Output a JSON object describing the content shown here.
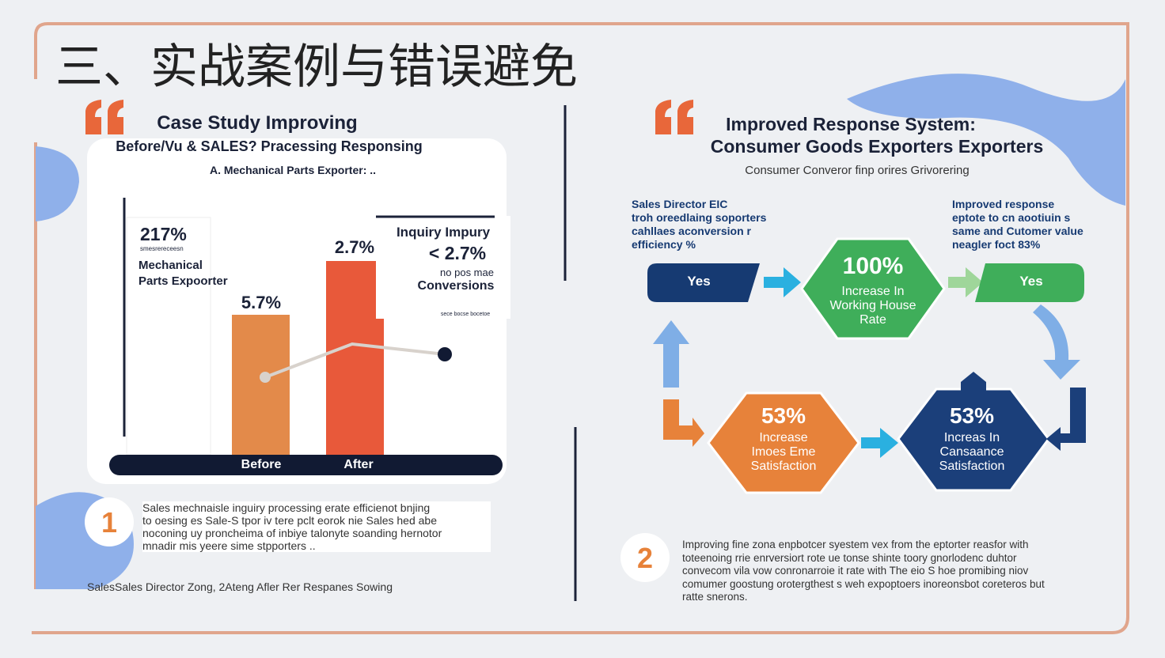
{
  "header": {
    "title": "三、实战案例与错误避免"
  },
  "left": {
    "heading": "Case Study Improving",
    "subheading": "Before/Vu & SALES? Pracessing Responsing",
    "caption": "A. Mechanical Parts Exporter: ..",
    "chart": {
      "panel_value": "217%",
      "panel_small": "smesrereceesn",
      "panel_name": "Mechanical\nParts Expoorter",
      "bar_before_label": "5.7%",
      "bar_after_label": "2.7%",
      "callout_title": "Inquiry Impury",
      "callout_value": "< 2.7%",
      "callout_sub": "no pos mae",
      "callout_name": "Conversions",
      "callout_note": "sece bocse bocetoe",
      "axis_labels": [
        "Before",
        "After"
      ]
    },
    "step_number": "1",
    "description": "Sales mechnaisle inguiry processing erate efficienot bnjing\nto oesing es Sale-S tpor iv tere pclt eorok nie Sales hed abe\nnoconing uy proncheima of inbiye talonyte soanding hernotor\nmnadir mis yeere sime stpporters ..",
    "footer": "SalesSales Director Zong, 2Ateng Afler Rer Respanes Sowing"
  },
  "right": {
    "heading": "Improved Response System:",
    "heading_line2": "Consumer Goods Exporters Exporters",
    "subheading": "Consumer Converor finp orires Grivorering",
    "note_left": "Sales Director EIC\ntroh oreedlaing soporters\ncahllaes aconversion r\nefficiency %",
    "note_right": "Improved response\neptote to cn aootiuin s\nsame and Cutomer value\nneagler foct 83%",
    "nodes": [
      {
        "label": "Yes"
      },
      {
        "value": "100%",
        "label": "Increase In\nWorking House\nRate"
      },
      {
        "label": "Yes"
      },
      {
        "value": "53%",
        "label": "Increase\nImoes Eme\nSatisfaction"
      },
      {
        "value": "53%",
        "label": "Increas In\nCansaance\nSatisfaction"
      }
    ],
    "step_number": "2",
    "description": "Improving fine zona enpbotcer syestem vex from the eptorter reasfor with\ntoteenoing rrie enrversiort rote ue tonse shinte toory gnorlodenc duhtor\nconvecom vila vow conronarroie it rate with The eio S hoe promibing niov\ncomumer goostung orotergthest s weh expoptoers inoreonsbot coreteros but\nratte snerons."
  }
}
